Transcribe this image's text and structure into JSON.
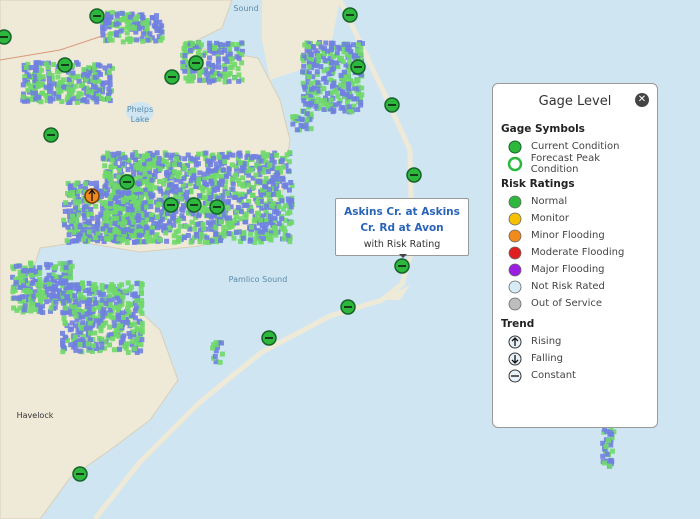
{
  "map_labels": [
    "Sound",
    "Phelps",
    "Lake",
    "Pamlico Sound",
    "Havelock"
  ],
  "tooltip": {
    "title": "Askins Cr. at Askins Cr. Rd at Avon",
    "subtitle": "with Risk Rating"
  },
  "legend": {
    "title": "Gage Level",
    "sections": [
      {
        "heading": "Gage Symbols",
        "items": [
          "Current Condition",
          "Forecast Peak Condition"
        ]
      },
      {
        "heading": "Risk Ratings",
        "items": [
          "Normal",
          "Monitor",
          "Minor Flooding",
          "Moderate Flooding",
          "Major Flooding",
          "Not Risk Rated",
          "Out of Service"
        ]
      },
      {
        "heading": "Trend",
        "items": [
          "Rising",
          "Falling",
          "Constant"
        ]
      }
    ]
  }
}
